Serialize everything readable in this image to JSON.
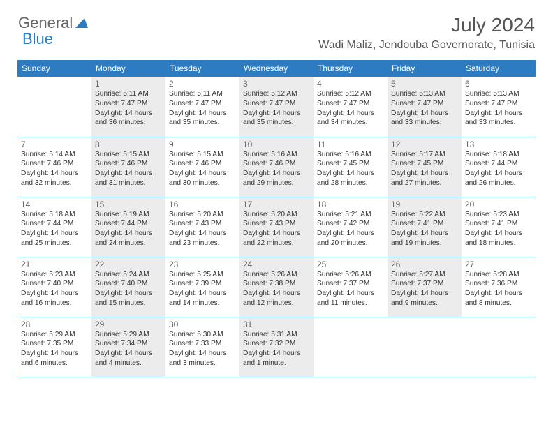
{
  "logo": {
    "part1": "General",
    "part2": "Blue"
  },
  "title": "July 2024",
  "location": "Wadi Maliz, Jendouba Governorate, Tunisia",
  "colors": {
    "header_bg": "#2d7bc0",
    "shaded_bg": "#ececec",
    "border": "#2d7bc0"
  },
  "day_labels": [
    "Sunday",
    "Monday",
    "Tuesday",
    "Wednesday",
    "Thursday",
    "Friday",
    "Saturday"
  ],
  "weeks": [
    [
      {
        "num": "",
        "sunrise": "",
        "sunset": "",
        "daylight": "",
        "shaded": false,
        "empty": true
      },
      {
        "num": "1",
        "sunrise": "Sunrise: 5:11 AM",
        "sunset": "Sunset: 7:47 PM",
        "daylight": "Daylight: 14 hours and 36 minutes.",
        "shaded": true
      },
      {
        "num": "2",
        "sunrise": "Sunrise: 5:11 AM",
        "sunset": "Sunset: 7:47 PM",
        "daylight": "Daylight: 14 hours and 35 minutes.",
        "shaded": false
      },
      {
        "num": "3",
        "sunrise": "Sunrise: 5:12 AM",
        "sunset": "Sunset: 7:47 PM",
        "daylight": "Daylight: 14 hours and 35 minutes.",
        "shaded": true
      },
      {
        "num": "4",
        "sunrise": "Sunrise: 5:12 AM",
        "sunset": "Sunset: 7:47 PM",
        "daylight": "Daylight: 14 hours and 34 minutes.",
        "shaded": false
      },
      {
        "num": "5",
        "sunrise": "Sunrise: 5:13 AM",
        "sunset": "Sunset: 7:47 PM",
        "daylight": "Daylight: 14 hours and 33 minutes.",
        "shaded": true
      },
      {
        "num": "6",
        "sunrise": "Sunrise: 5:13 AM",
        "sunset": "Sunset: 7:47 PM",
        "daylight": "Daylight: 14 hours and 33 minutes.",
        "shaded": false
      }
    ],
    [
      {
        "num": "7",
        "sunrise": "Sunrise: 5:14 AM",
        "sunset": "Sunset: 7:46 PM",
        "daylight": "Daylight: 14 hours and 32 minutes.",
        "shaded": false
      },
      {
        "num": "8",
        "sunrise": "Sunrise: 5:15 AM",
        "sunset": "Sunset: 7:46 PM",
        "daylight": "Daylight: 14 hours and 31 minutes.",
        "shaded": true
      },
      {
        "num": "9",
        "sunrise": "Sunrise: 5:15 AM",
        "sunset": "Sunset: 7:46 PM",
        "daylight": "Daylight: 14 hours and 30 minutes.",
        "shaded": false
      },
      {
        "num": "10",
        "sunrise": "Sunrise: 5:16 AM",
        "sunset": "Sunset: 7:46 PM",
        "daylight": "Daylight: 14 hours and 29 minutes.",
        "shaded": true
      },
      {
        "num": "11",
        "sunrise": "Sunrise: 5:16 AM",
        "sunset": "Sunset: 7:45 PM",
        "daylight": "Daylight: 14 hours and 28 minutes.",
        "shaded": false
      },
      {
        "num": "12",
        "sunrise": "Sunrise: 5:17 AM",
        "sunset": "Sunset: 7:45 PM",
        "daylight": "Daylight: 14 hours and 27 minutes.",
        "shaded": true
      },
      {
        "num": "13",
        "sunrise": "Sunrise: 5:18 AM",
        "sunset": "Sunset: 7:44 PM",
        "daylight": "Daylight: 14 hours and 26 minutes.",
        "shaded": false
      }
    ],
    [
      {
        "num": "14",
        "sunrise": "Sunrise: 5:18 AM",
        "sunset": "Sunset: 7:44 PM",
        "daylight": "Daylight: 14 hours and 25 minutes.",
        "shaded": false
      },
      {
        "num": "15",
        "sunrise": "Sunrise: 5:19 AM",
        "sunset": "Sunset: 7:44 PM",
        "daylight": "Daylight: 14 hours and 24 minutes.",
        "shaded": true
      },
      {
        "num": "16",
        "sunrise": "Sunrise: 5:20 AM",
        "sunset": "Sunset: 7:43 PM",
        "daylight": "Daylight: 14 hours and 23 minutes.",
        "shaded": false
      },
      {
        "num": "17",
        "sunrise": "Sunrise: 5:20 AM",
        "sunset": "Sunset: 7:43 PM",
        "daylight": "Daylight: 14 hours and 22 minutes.",
        "shaded": true
      },
      {
        "num": "18",
        "sunrise": "Sunrise: 5:21 AM",
        "sunset": "Sunset: 7:42 PM",
        "daylight": "Daylight: 14 hours and 20 minutes.",
        "shaded": false
      },
      {
        "num": "19",
        "sunrise": "Sunrise: 5:22 AM",
        "sunset": "Sunset: 7:41 PM",
        "daylight": "Daylight: 14 hours and 19 minutes.",
        "shaded": true
      },
      {
        "num": "20",
        "sunrise": "Sunrise: 5:23 AM",
        "sunset": "Sunset: 7:41 PM",
        "daylight": "Daylight: 14 hours and 18 minutes.",
        "shaded": false
      }
    ],
    [
      {
        "num": "21",
        "sunrise": "Sunrise: 5:23 AM",
        "sunset": "Sunset: 7:40 PM",
        "daylight": "Daylight: 14 hours and 16 minutes.",
        "shaded": false
      },
      {
        "num": "22",
        "sunrise": "Sunrise: 5:24 AM",
        "sunset": "Sunset: 7:40 PM",
        "daylight": "Daylight: 14 hours and 15 minutes.",
        "shaded": true
      },
      {
        "num": "23",
        "sunrise": "Sunrise: 5:25 AM",
        "sunset": "Sunset: 7:39 PM",
        "daylight": "Daylight: 14 hours and 14 minutes.",
        "shaded": false
      },
      {
        "num": "24",
        "sunrise": "Sunrise: 5:26 AM",
        "sunset": "Sunset: 7:38 PM",
        "daylight": "Daylight: 14 hours and 12 minutes.",
        "shaded": true
      },
      {
        "num": "25",
        "sunrise": "Sunrise: 5:26 AM",
        "sunset": "Sunset: 7:37 PM",
        "daylight": "Daylight: 14 hours and 11 minutes.",
        "shaded": false
      },
      {
        "num": "26",
        "sunrise": "Sunrise: 5:27 AM",
        "sunset": "Sunset: 7:37 PM",
        "daylight": "Daylight: 14 hours and 9 minutes.",
        "shaded": true
      },
      {
        "num": "27",
        "sunrise": "Sunrise: 5:28 AM",
        "sunset": "Sunset: 7:36 PM",
        "daylight": "Daylight: 14 hours and 8 minutes.",
        "shaded": false
      }
    ],
    [
      {
        "num": "28",
        "sunrise": "Sunrise: 5:29 AM",
        "sunset": "Sunset: 7:35 PM",
        "daylight": "Daylight: 14 hours and 6 minutes.",
        "shaded": false
      },
      {
        "num": "29",
        "sunrise": "Sunrise: 5:29 AM",
        "sunset": "Sunset: 7:34 PM",
        "daylight": "Daylight: 14 hours and 4 minutes.",
        "shaded": true
      },
      {
        "num": "30",
        "sunrise": "Sunrise: 5:30 AM",
        "sunset": "Sunset: 7:33 PM",
        "daylight": "Daylight: 14 hours and 3 minutes.",
        "shaded": false
      },
      {
        "num": "31",
        "sunrise": "Sunrise: 5:31 AM",
        "sunset": "Sunset: 7:32 PM",
        "daylight": "Daylight: 14 hours and 1 minute.",
        "shaded": true
      },
      {
        "num": "",
        "sunrise": "",
        "sunset": "",
        "daylight": "",
        "shaded": false,
        "empty": true
      },
      {
        "num": "",
        "sunrise": "",
        "sunset": "",
        "daylight": "",
        "shaded": false,
        "empty": true
      },
      {
        "num": "",
        "sunrise": "",
        "sunset": "",
        "daylight": "",
        "shaded": false,
        "empty": true
      }
    ]
  ]
}
